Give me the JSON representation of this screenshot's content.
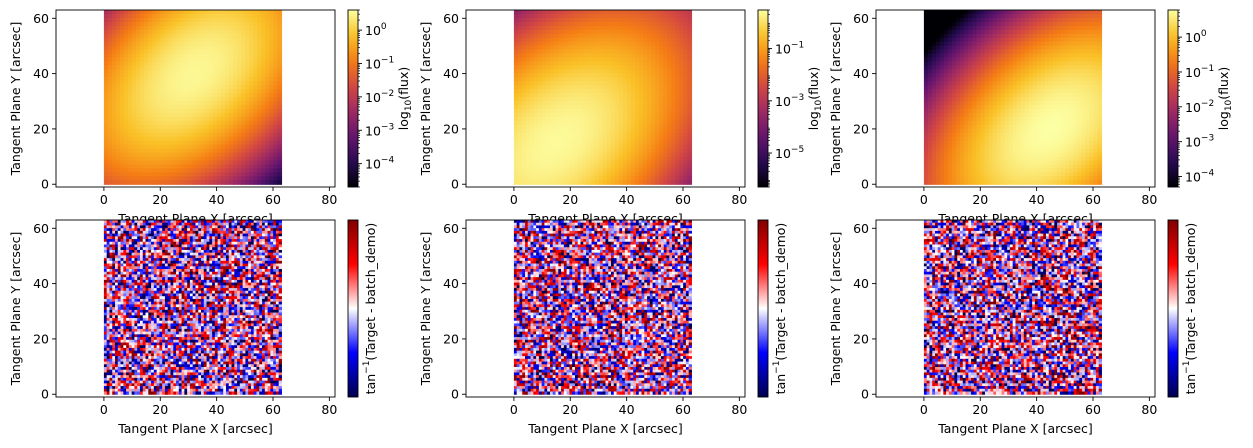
{
  "chart_data": [
    {
      "type": "heatmap",
      "quantity": "model flux",
      "xlabel": "Tangent Plane X [arcsec]",
      "ylabel": "Tangent Plane Y [arcsec]",
      "xlim": [
        -17,
        82
      ],
      "ylim": [
        -1,
        63
      ],
      "xticks": [
        "0",
        "20",
        "40",
        "60",
        "80"
      ],
      "yticks": [
        "0",
        "20",
        "40",
        "60"
      ],
      "image_extent": {
        "x": [
          0,
          63
        ],
        "y": [
          0,
          63
        ]
      },
      "peak": {
        "x": 32,
        "y": 40,
        "value": 3.2
      },
      "colormap": "inferno",
      "colorbar": {
        "label": "log10(flux)",
        "scale": "log",
        "min": 2e-05,
        "max": 4,
        "ticks": [
          {
            "exp": 0
          },
          {
            "exp": -1
          },
          {
            "exp": -2
          },
          {
            "exp": -3
          },
          {
            "exp": -4
          }
        ]
      }
    },
    {
      "type": "heatmap",
      "quantity": "model flux",
      "xlabel": "Tangent Plane X [arcsec]",
      "ylabel": "Tangent Plane Y [arcsec]",
      "xlim": [
        -17,
        82
      ],
      "ylim": [
        -1,
        63
      ],
      "xticks": [
        "0",
        "20",
        "40",
        "60",
        "80"
      ],
      "yticks": [
        "0",
        "20",
        "40",
        "60"
      ],
      "image_extent": {
        "x": [
          0,
          63
        ],
        "y": [
          0,
          63
        ]
      },
      "peak": {
        "x": 15,
        "y": 15,
        "value": 2.5
      },
      "colormap": "inferno",
      "colorbar": {
        "label": "log10(flux)",
        "scale": "log",
        "min": 5e-07,
        "max": 3,
        "ticks": [
          {
            "exp": -1
          },
          {
            "exp": -3
          },
          {
            "exp": -5
          }
        ]
      }
    },
    {
      "type": "heatmap",
      "quantity": "model flux",
      "xlabel": "Tangent Plane X [arcsec]",
      "ylabel": "Tangent Plane Y [arcsec]",
      "xlim": [
        -17,
        82
      ],
      "ylim": [
        -1,
        63
      ],
      "xticks": [
        "0",
        "20",
        "40",
        "60",
        "80"
      ],
      "yticks": [
        "0",
        "20",
        "40",
        "60"
      ],
      "image_extent": {
        "x": [
          0,
          63
        ],
        "y": [
          0,
          63
        ]
      },
      "peak": {
        "x": 45,
        "y": 20,
        "value": 6
      },
      "colormap": "inferno",
      "colorbar": {
        "label": "log10(flux)",
        "scale": "log",
        "min": 5e-05,
        "max": 6,
        "ticks": [
          {
            "exp": 0
          },
          {
            "exp": -1
          },
          {
            "exp": -2
          },
          {
            "exp": -3
          },
          {
            "exp": -4
          }
        ]
      }
    },
    {
      "type": "heatmap",
      "quantity": "residual",
      "xlabel": "Tangent Plane X [arcsec]",
      "ylabel": "Tangent Plane Y [arcsec]",
      "xlim": [
        -17,
        82
      ],
      "ylim": [
        -1,
        63
      ],
      "xticks": [
        "0",
        "20",
        "40",
        "60",
        "80"
      ],
      "yticks": [
        "0",
        "20",
        "40",
        "60"
      ],
      "image_extent": {
        "x": [
          0,
          63
        ],
        "y": [
          0,
          63
        ]
      },
      "colormap": "seismic",
      "noise_seed": 11,
      "colorbar": {
        "label_prefix": "tan",
        "label_exp": "−1",
        "label_rest": "(Target - batch_demo)",
        "scale": "linear",
        "ticks": []
      }
    },
    {
      "type": "heatmap",
      "quantity": "residual",
      "xlabel": "Tangent Plane X [arcsec]",
      "ylabel": "Tangent Plane Y [arcsec]",
      "xlim": [
        -17,
        82
      ],
      "ylim": [
        -1,
        63
      ],
      "xticks": [
        "0",
        "20",
        "40",
        "60",
        "80"
      ],
      "yticks": [
        "0",
        "20",
        "40",
        "60"
      ],
      "image_extent": {
        "x": [
          0,
          63
        ],
        "y": [
          0,
          63
        ]
      },
      "colormap": "seismic",
      "noise_seed": 29,
      "colorbar": {
        "label_prefix": "tan",
        "label_exp": "−1",
        "label_rest": "(Target - batch_demo)",
        "scale": "linear",
        "ticks": []
      }
    },
    {
      "type": "heatmap",
      "quantity": "residual",
      "xlabel": "Tangent Plane X [arcsec]",
      "ylabel": "Tangent Plane Y [arcsec]",
      "xlim": [
        -17,
        82
      ],
      "ylim": [
        -1,
        63
      ],
      "xticks": [
        "0",
        "20",
        "40",
        "60",
        "80"
      ],
      "yticks": [
        "0",
        "20",
        "40",
        "60"
      ],
      "image_extent": {
        "x": [
          0,
          63
        ],
        "y": [
          0,
          63
        ]
      },
      "colormap": "seismic",
      "noise_seed": 47,
      "colorbar": {
        "label_prefix": "tan",
        "label_exp": "−1",
        "label_rest": "(Target - batch_demo)",
        "scale": "linear",
        "ticks": []
      }
    }
  ]
}
